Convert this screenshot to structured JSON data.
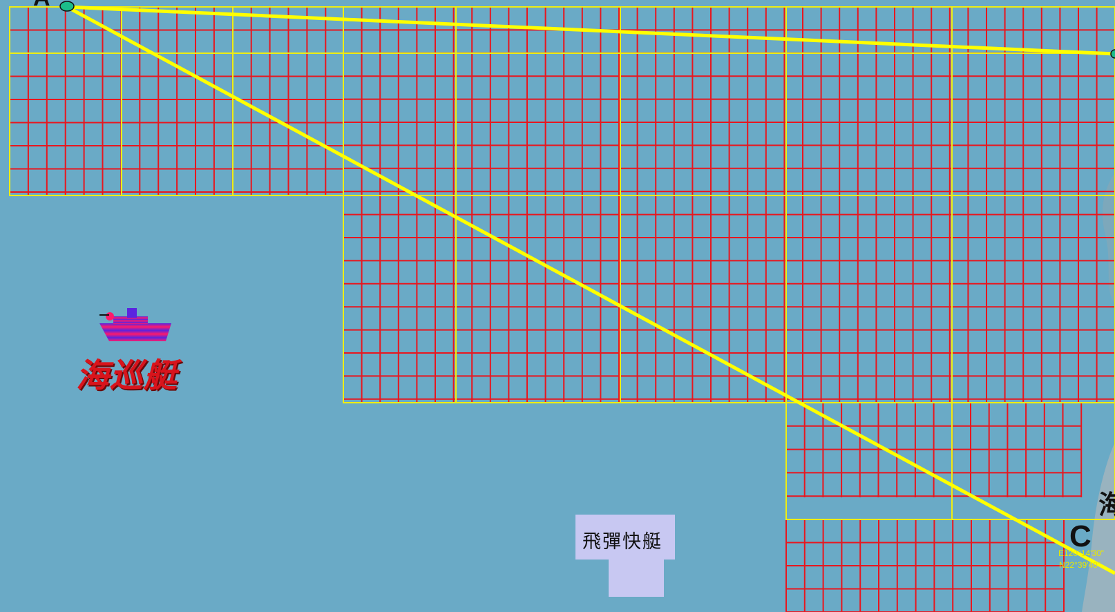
{
  "map": {
    "point_a": "A",
    "point_c": "C",
    "coord_lon": "E120°14'30\"",
    "coord_lat": "N22°39'40\"",
    "coast_label_partial": "海",
    "patrol_boat_label": "海巡艇",
    "missile_boat_label": "飛彈快艇",
    "colors": {
      "sea": "#6aaac6",
      "fine_grid": "#e8161e",
      "major_grid": "#f0ee10",
      "route": "#ffff00",
      "label_red": "#d8141c"
    },
    "icons": [
      "patrol-boat-icon",
      "missile-boat-icon",
      "waypoint-a-icon",
      "waypoint-c-icon"
    ]
  }
}
